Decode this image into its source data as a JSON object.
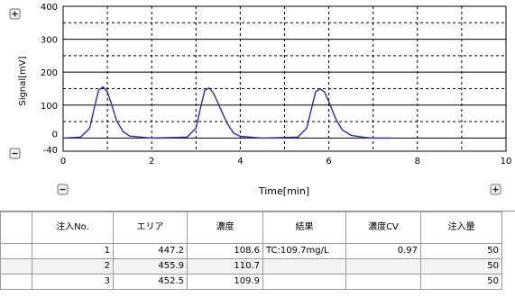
{
  "chart_data": {
    "type": "line",
    "xlabel": "Time[min]",
    "ylabel": "Signal[mV]",
    "xlim": [
      0,
      10
    ],
    "ylim": [
      -40,
      400
    ],
    "x_ticks": [
      "0",
      "2",
      "4",
      "6",
      "8",
      "10"
    ],
    "y_ticks": [
      "-40",
      "0",
      "100",
      "200",
      "300",
      "400"
    ],
    "grid": true,
    "series": [
      {
        "color": "#2b2bb0",
        "x": [
          0,
          0.4,
          0.6,
          0.7,
          0.8,
          0.9,
          1.0,
          1.1,
          1.2,
          1.35,
          1.5,
          2.0,
          2.8,
          3.0,
          3.1,
          3.2,
          3.3,
          3.4,
          3.55,
          3.7,
          3.85,
          4.0,
          4.5,
          5.3,
          5.5,
          5.6,
          5.7,
          5.8,
          5.9,
          6.0,
          6.15,
          6.3,
          6.5,
          6.8,
          7.0,
          7.4
        ],
        "y": [
          0,
          3,
          30,
          90,
          145,
          155,
          140,
          100,
          55,
          20,
          6,
          0,
          3,
          30,
          90,
          145,
          152,
          135,
          90,
          45,
          15,
          5,
          0,
          3,
          30,
          85,
          140,
          150,
          140,
          110,
          60,
          25,
          8,
          2,
          0,
          0
        ]
      }
    ]
  },
  "zoom": {
    "plus": "+",
    "minus": "−"
  },
  "table": {
    "headers": [
      "",
      "注入No.",
      "エリア",
      "濃度",
      "結果",
      "濃度CV",
      "注入量"
    ],
    "rows": [
      [
        "",
        "1",
        "447.2",
        "108.6",
        "TC:109.7mg/L",
        "0.97",
        "50"
      ],
      [
        "",
        "2",
        "455.9",
        "110.7",
        "",
        "",
        "50"
      ],
      [
        "",
        "3",
        "452.5",
        "109.9",
        "",
        "",
        "50"
      ]
    ]
  }
}
